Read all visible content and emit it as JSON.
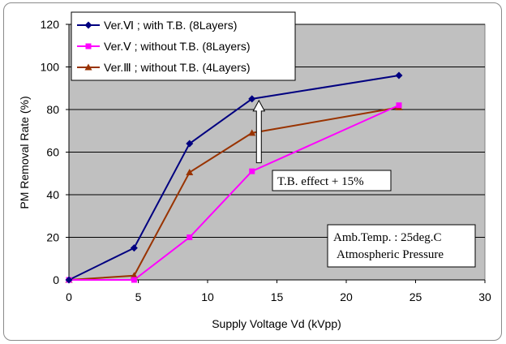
{
  "chart_data": {
    "type": "line",
    "title": "",
    "xlabel": "Supply Voltage Vd (kVpp)",
    "ylabel": "PM Removal Rate (%)",
    "xlim": [
      0,
      30
    ],
    "ylim": [
      0,
      120
    ],
    "x_ticks": [
      "0",
      "5",
      "10",
      "15",
      "20",
      "25",
      "30"
    ],
    "y_ticks": [
      "0",
      "20",
      "40",
      "60",
      "80",
      "100",
      "120"
    ],
    "grid": "horizontal",
    "plot_background": "#c0c0c0",
    "legend_position": "top-left",
    "series": [
      {
        "name": "Ver.Ⅵ ; with T.B. (8Layers)",
        "color": "#000080",
        "marker": "diamond",
        "points": [
          [
            0,
            0
          ],
          [
            4.7,
            15
          ],
          [
            8.7,
            64
          ],
          [
            13.2,
            85
          ],
          [
            23.8,
            96
          ]
        ]
      },
      {
        "name": "Ver.Ⅴ ; without T.B. (8Layers)",
        "color": "#ff00ff",
        "marker": "square",
        "points": [
          [
            0,
            0
          ],
          [
            4.7,
            0
          ],
          [
            8.7,
            20
          ],
          [
            13.2,
            51
          ],
          [
            23.8,
            82
          ]
        ]
      },
      {
        "name": "Ver.Ⅲ ; without T.B. (4Layers)",
        "color": "#993300",
        "marker": "triangle",
        "points": [
          [
            0,
            0
          ],
          [
            4.7,
            2
          ],
          [
            8.7,
            50.5
          ],
          [
            13.2,
            69
          ],
          [
            23.8,
            81
          ]
        ]
      }
    ],
    "annotations": [
      {
        "text": "T.B. effect + 15%",
        "arrow_from": [
          13.7,
          55
        ],
        "arrow_to": [
          13.7,
          85
        ]
      }
    ],
    "info_box": {
      "line1": "Amb.Temp.  :  25deg.C",
      "line2": "Atmospheric Pressure"
    }
  }
}
